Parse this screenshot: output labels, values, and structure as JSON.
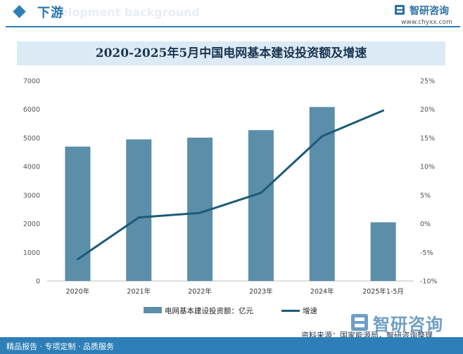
{
  "header": {
    "section_title": "下游",
    "bg_text": "elopment background",
    "brand_name": "智研咨询",
    "brand_url": "www.chyxx.com"
  },
  "chart_data": {
    "type": "bar",
    "title": "2020-2025年5月中国电网基本建设投资额及增速",
    "categories": [
      "2020年",
      "2021年",
      "2022年",
      "2023年",
      "2024年",
      "2025年1-5月"
    ],
    "series": [
      {
        "name": "电网基本建设投资额：亿元",
        "type": "bar",
        "axis": "left",
        "values": [
          4699,
          4951,
          5012,
          5275,
          6083,
          2052
        ]
      },
      {
        "name": "增速",
        "type": "line",
        "axis": "right",
        "values": [
          -6.2,
          1.1,
          1.9,
          5.4,
          15.3,
          19.8
        ]
      }
    ],
    "y_left": {
      "min": 0,
      "max": 7000,
      "step": 1000
    },
    "y_right": {
      "min": -10,
      "max": 25,
      "step": 5,
      "unit": "%"
    },
    "colors": {
      "bar": "#5b8ea8",
      "line": "#1c5b78"
    },
    "legend_position": "bottom",
    "grid": false
  },
  "footer": {
    "source": "资料来源：国家能源局，智研咨询整理",
    "tagline": "精品报告 · 专项定制 · 品质服务",
    "logo_text": "智研咨询"
  }
}
